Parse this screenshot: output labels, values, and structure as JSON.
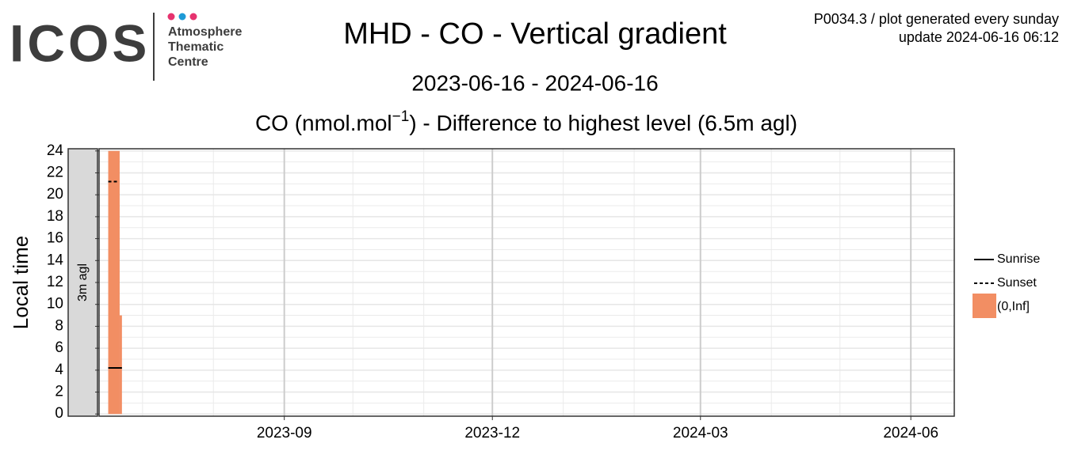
{
  "logo": {
    "name": "ICOS",
    "lines": [
      "Atmosphere",
      "Thematic",
      "Centre"
    ]
  },
  "info": [
    "P0034.3 / plot generated every sunday",
    "update  2024-06-16 06:12"
  ],
  "chart_data": {
    "type": "tile",
    "title": "MHD - CO - Vertical gradient",
    "subtitle": "2023-06-16 - 2024-06-16",
    "plot_title": [
      "CO (nmol.mol",
      "−1",
      ") - Difference to highest level (6.5m agl)"
    ],
    "facet": "3m agl",
    "y_label": "Local time",
    "xlim": [
      "2023-06-12",
      "2024-06-20"
    ],
    "xticks": [
      "2023-09",
      "2023-12",
      "2024-03",
      "2024-06"
    ],
    "ylim": [
      -0.2,
      24.2
    ],
    "yticks": [
      0,
      2,
      4,
      6,
      8,
      10,
      12,
      14,
      16,
      18,
      20,
      22,
      24
    ],
    "grid": true,
    "tiles": {
      "name": "(0,Inf]",
      "color": "#f28e63",
      "x": [
        [
          "2023-06-16",
          "2023-06-21"
        ],
        [
          "2023-06-21",
          "2023-06-22"
        ]
      ],
      "y": [
        [
          0,
          24
        ],
        [
          0,
          9
        ]
      ]
    },
    "series": [
      {
        "name": "Sunrise",
        "dash": false,
        "color": "#000000",
        "x": [
          "2023-06-16",
          "2023-06-22"
        ],
        "values": [
          4.2,
          4.2
        ]
      },
      {
        "name": "Sunset",
        "dash": true,
        "color": "#000000",
        "x": [
          "2023-06-16",
          "2023-06-20"
        ],
        "values": [
          21.2,
          21.2
        ]
      }
    ]
  }
}
